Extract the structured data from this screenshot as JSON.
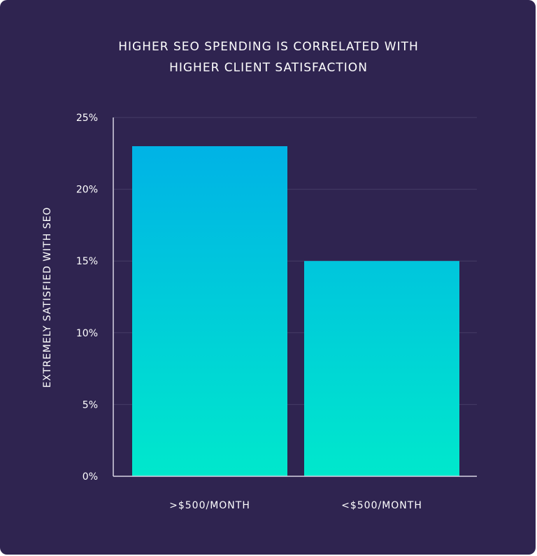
{
  "chart_data": {
    "type": "bar",
    "title_line1": "HIGHER SEO SPENDING IS CORRELATED WITH",
    "title_line2": "HIGHER CLIENT SATISFACTION",
    "xlabel": "",
    "ylabel": "EXTREMELY SATISFIED WITH SEO",
    "categories": [
      ">$500/MONTH",
      "<$500/MONTH"
    ],
    "values": [
      23,
      15
    ],
    "ylim": [
      0,
      25
    ],
    "yticks": [
      0,
      5,
      10,
      15,
      20,
      25
    ],
    "ytick_labels": [
      "0%",
      "5%",
      "10%",
      "15%",
      "20%",
      "25%"
    ],
    "grid": true,
    "colors": {
      "background": "#2f2450",
      "bar_top": "#00aee8",
      "bar_bottom": "#00e8cc",
      "grid": "#463c66"
    }
  }
}
